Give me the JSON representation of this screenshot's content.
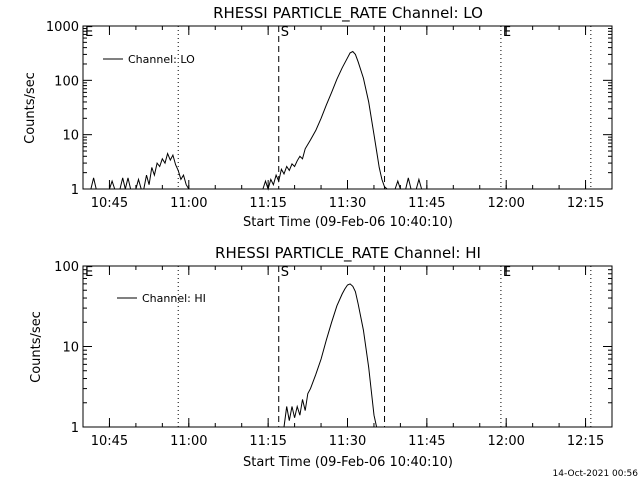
{
  "colors": {
    "background": "#ffffff",
    "ink": "#000000"
  },
  "footer": {
    "timestamp": "14-Oct-2021 00:56"
  },
  "chart_data": [
    {
      "type": "line",
      "title": "RHESSI PARTICLE_RATE Channel: LO",
      "xlabel": "Start Time (09-Feb-06 10:40:10)",
      "ylabel": "Counts/sec",
      "yscale": "log",
      "ylim": [
        1,
        1000
      ],
      "yticks": [
        {
          "value": 1,
          "label": "1"
        },
        {
          "value": 10,
          "label": "10"
        },
        {
          "value": 100,
          "label": "100"
        },
        {
          "value": 1000,
          "label": "1000"
        }
      ],
      "xlim": [
        "10:40",
        "12:20"
      ],
      "xticks": [
        "10:45",
        "11:00",
        "11:15",
        "11:30",
        "11:45",
        "12:00",
        "12:15"
      ],
      "legend": {
        "position": "top-left",
        "label": "Channel: LO"
      },
      "markers": [
        {
          "time": "10:40",
          "label": "E",
          "style": "dotted"
        },
        {
          "time": "10:58",
          "label": "",
          "style": "dotted"
        },
        {
          "time": "11:17",
          "label": "S",
          "style": "dashed"
        },
        {
          "time": "11:37",
          "label": "",
          "style": "dashed"
        },
        {
          "time": "11:59",
          "label": "E",
          "style": "dotted"
        },
        {
          "time": "12:16",
          "label": "",
          "style": "dotted"
        }
      ],
      "series": [
        {
          "name": "Channel: LO",
          "points": [
            [
              "10:41:30",
              0
            ],
            [
              "10:42:00",
              1.6
            ],
            [
              "10:42:30",
              0
            ],
            [
              "10:45:00",
              0
            ],
            [
              "10:45:30",
              1.4
            ],
            [
              "10:46:00",
              0
            ],
            [
              "10:47:00",
              0
            ],
            [
              "10:47:30",
              1.6
            ],
            [
              "10:48:00",
              0
            ],
            [
              "10:48:30",
              1.6
            ],
            [
              "10:49:00",
              0
            ],
            [
              "10:50:00",
              0
            ],
            [
              "10:50:30",
              1.5
            ],
            [
              "10:51:00",
              0
            ],
            [
              "10:51:30",
              0
            ],
            [
              "10:52:00",
              1.8
            ],
            [
              "10:52:30",
              1.2
            ],
            [
              "10:53:00",
              2.5
            ],
            [
              "10:53:30",
              1.8
            ],
            [
              "10:54:00",
              3.0
            ],
            [
              "10:54:30",
              2.6
            ],
            [
              "10:55:00",
              3.6
            ],
            [
              "10:55:30",
              3.0
            ],
            [
              "10:56:00",
              4.5
            ],
            [
              "10:56:30",
              3.4
            ],
            [
              "10:57:00",
              4.2
            ],
            [
              "10:57:30",
              2.8
            ],
            [
              "10:58:00",
              2.2
            ],
            [
              "10:58:30",
              1.5
            ],
            [
              "10:59:00",
              1.8
            ],
            [
              "10:59:30",
              1.2
            ],
            [
              "11:00:00",
              0
            ],
            [
              "11:14:00",
              0
            ],
            [
              "11:14:30",
              1.4
            ],
            [
              "11:15:00",
              0
            ],
            [
              "11:15:30",
              1.5
            ],
            [
              "11:16:00",
              1.2
            ],
            [
              "11:16:30",
              1.8
            ],
            [
              "11:17:00",
              1.4
            ],
            [
              "11:17:30",
              2.3
            ],
            [
              "11:18:00",
              1.9
            ],
            [
              "11:18:30",
              2.6
            ],
            [
              "11:19:00",
              2.2
            ],
            [
              "11:19:30",
              2.9
            ],
            [
              "11:20:00",
              2.6
            ],
            [
              "11:20:30",
              3.3
            ],
            [
              "11:21:00",
              4.0
            ],
            [
              "11:21:30",
              3.6
            ],
            [
              "11:22:00",
              5.5
            ],
            [
              "11:23:00",
              8.0
            ],
            [
              "11:24:00",
              12
            ],
            [
              "11:25:00",
              20
            ],
            [
              "11:26:00",
              35
            ],
            [
              "11:27:00",
              60
            ],
            [
              "11:28:00",
              105
            ],
            [
              "11:29:00",
              170
            ],
            [
              "11:30:00",
              260
            ],
            [
              "11:30:30",
              320
            ],
            [
              "11:31:00",
              340
            ],
            [
              "11:31:30",
              300
            ],
            [
              "11:32:00",
              220
            ],
            [
              "11:33:00",
              110
            ],
            [
              "11:34:00",
              40
            ],
            [
              "11:35:00",
              10
            ],
            [
              "11:35:30",
              5
            ],
            [
              "11:36:00",
              2.5
            ],
            [
              "11:36:30",
              1.5
            ],
            [
              "11:37:00",
              1.1
            ],
            [
              "11:37:30",
              0
            ],
            [
              "11:39:00",
              0
            ],
            [
              "11:39:30",
              1.4
            ],
            [
              "11:40:00",
              0
            ],
            [
              "11:41:00",
              0
            ],
            [
              "11:41:30",
              1.6
            ],
            [
              "11:42:00",
              0
            ],
            [
              "11:43:00",
              0
            ],
            [
              "11:43:30",
              1.5
            ],
            [
              "11:44:00",
              0
            ]
          ]
        }
      ]
    },
    {
      "type": "line",
      "title": "RHESSI PARTICLE_RATE Channel: HI",
      "xlabel": "Start Time (09-Feb-06 10:40:10)",
      "ylabel": "Counts/sec",
      "yscale": "log",
      "ylim": [
        1,
        100
      ],
      "yticks": [
        {
          "value": 1,
          "label": "1"
        },
        {
          "value": 10,
          "label": "10"
        },
        {
          "value": 100,
          "label": "100"
        }
      ],
      "xlim": [
        "10:40",
        "12:20"
      ],
      "xticks": [
        "10:45",
        "11:00",
        "11:15",
        "11:30",
        "11:45",
        "12:00",
        "12:15"
      ],
      "legend": {
        "position": "top-left",
        "label": "Channel: HI"
      },
      "markers": [
        {
          "time": "10:40",
          "label": "E",
          "style": "dotted"
        },
        {
          "time": "10:58",
          "label": "",
          "style": "dotted"
        },
        {
          "time": "11:17",
          "label": "S",
          "style": "dashed"
        },
        {
          "time": "11:37",
          "label": "",
          "style": "dashed"
        },
        {
          "time": "11:59",
          "label": "E",
          "style": "dotted"
        },
        {
          "time": "12:16",
          "label": "",
          "style": "dotted"
        }
      ],
      "series": [
        {
          "name": "Channel: HI",
          "points": [
            [
              "11:18:00",
              0
            ],
            [
              "11:18:30",
              1.8
            ],
            [
              "11:19:00",
              1.2
            ],
            [
              "11:19:30",
              1.8
            ],
            [
              "11:20:00",
              1.3
            ],
            [
              "11:20:30",
              1.8
            ],
            [
              "11:21:00",
              1.4
            ],
            [
              "11:21:30",
              2.2
            ],
            [
              "11:22:00",
              1.6
            ],
            [
              "11:22:30",
              2.6
            ],
            [
              "11:23:00",
              3.0
            ],
            [
              "11:24:00",
              4.5
            ],
            [
              "11:25:00",
              7.0
            ],
            [
              "11:26:00",
              12
            ],
            [
              "11:27:00",
              20
            ],
            [
              "11:28:00",
              32
            ],
            [
              "11:29:00",
              45
            ],
            [
              "11:29:30",
              52
            ],
            [
              "11:30:00",
              58
            ],
            [
              "11:30:30",
              60
            ],
            [
              "11:31:00",
              56
            ],
            [
              "11:31:30",
              48
            ],
            [
              "11:32:00",
              34
            ],
            [
              "11:33:00",
              16
            ],
            [
              "11:34:00",
              5.5
            ],
            [
              "11:34:30",
              2.8
            ],
            [
              "11:35:00",
              1.4
            ],
            [
              "11:35:30",
              1.0
            ]
          ]
        }
      ]
    }
  ]
}
